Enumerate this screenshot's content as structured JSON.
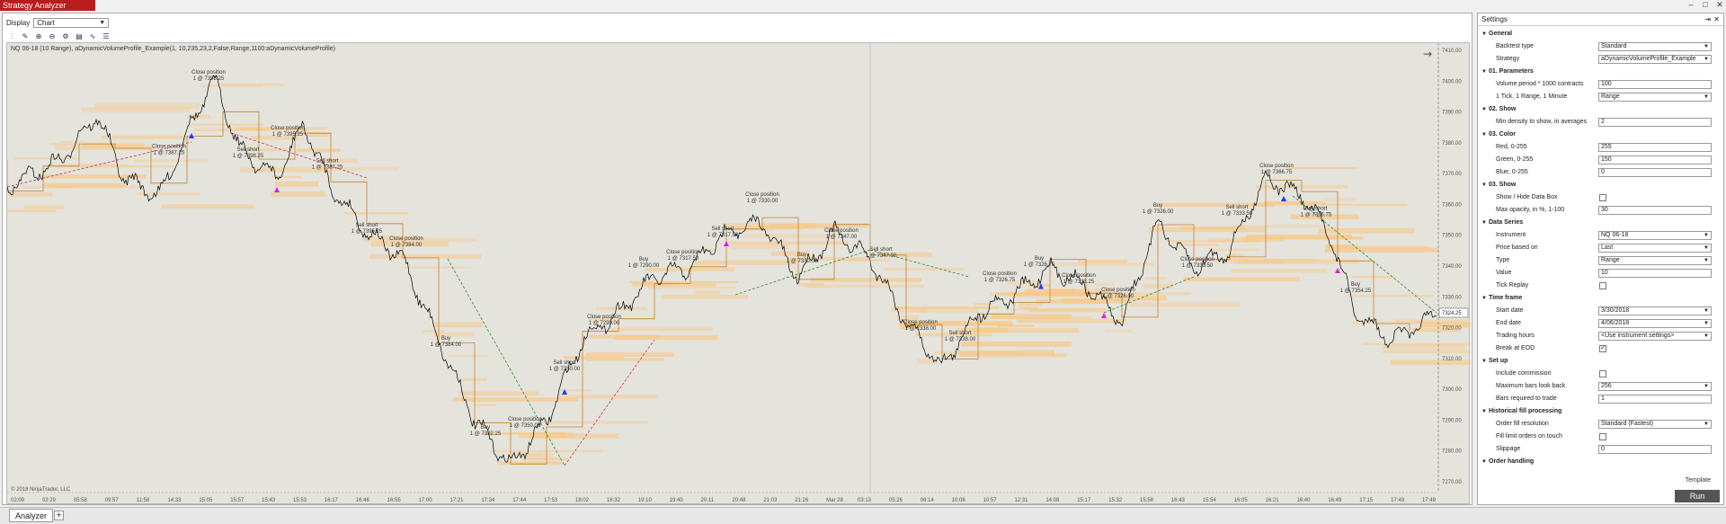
{
  "window": {
    "title": "Strategy Analyzer",
    "minimize": "–",
    "maximize": "□",
    "close": "✕"
  },
  "display": {
    "label": "Display",
    "value": "Chart"
  },
  "toolbar": {
    "icons": [
      "bar-type-icon",
      "draw-icon",
      "zoom-in-icon",
      "zoom-out-icon",
      "properties-icon",
      "indicators-icon",
      "strategies-icon",
      "data-box-icon"
    ]
  },
  "chart": {
    "header": "NQ 06-18 (10 Range), aDynamicVolumeProfile_Example(1, 10,235,23,2,False,Range,1100:aDynamicVolumeProfile)",
    "copyright": "© 2018 NinjaTrader, LLC",
    "last_price_tag": "7324.25",
    "colors": {
      "background": "#e4e3dc",
      "price": "#000000",
      "profile": "#f7c98a",
      "poc": "#c8822c",
      "win": "#2e8b2e",
      "loss": "#d0304a",
      "buy": "#1e3cff",
      "sell": "#e020e0"
    }
  },
  "chart_data": {
    "type": "line",
    "y_ticks": [
      "7410.00",
      "7400.00",
      "7390.00",
      "7380.00",
      "7370.00",
      "7360.00",
      "7350.00",
      "7340.00",
      "7330.00",
      "7320.00",
      "7310.00",
      "7300.00",
      "7290.00",
      "7280.00",
      "7270.00"
    ],
    "x_ticks": [
      "02:09",
      "03:29",
      "05:58",
      "09:57",
      "11:58",
      "14:33",
      "15:05",
      "15:57",
      "15:43",
      "15:53",
      "16:17",
      "16:46",
      "16:55",
      "17:00",
      "17:21",
      "17:34",
      "17:44",
      "17:53",
      "18:02",
      "18:32",
      "19:10",
      "19:40",
      "20:11",
      "20:48",
      "21:03",
      "21:26",
      "Mar 28",
      "03:13",
      "05:26",
      "06:14",
      "10:08",
      "10:57",
      "12:31",
      "14:08",
      "15:17",
      "15:32",
      "15:58",
      "16:43",
      "15:54",
      "16:05",
      "16:21",
      "16:40",
      "16:49",
      "17:15",
      "17:49",
      "17:49"
    ],
    "annotations": [
      {
        "label": "Close position",
        "price": "1 @ 7387.25"
      },
      {
        "label": "Close position",
        "price": "1 @ 7398.25"
      },
      {
        "label": "Sell short",
        "price": "1 @ 7398.25"
      },
      {
        "label": "Close position",
        "price": "1 @ 7395.25"
      },
      {
        "label": "Sell short",
        "price": "1 @ 7387.25"
      },
      {
        "label": "Sell short",
        "price": "1 @ 7395.25"
      },
      {
        "label": "Close position",
        "price": "1 @ 7384.00"
      },
      {
        "label": "Buy",
        "price": "1 @ 7384.00"
      },
      {
        "label": "Buy",
        "price": "1 @ 7382.25"
      },
      {
        "label": "Close position",
        "price": "1 @ 7350.00"
      },
      {
        "label": "Sell short",
        "price": "1 @ 7350.00"
      },
      {
        "label": "Close position",
        "price": "1 @ 7290.00"
      },
      {
        "label": "Buy",
        "price": "1 @ 7290.00"
      },
      {
        "label": "Close position",
        "price": "1 @ 7317.50"
      },
      {
        "label": "Sell short",
        "price": "1 @ 7317.50"
      },
      {
        "label": "Close position",
        "price": "1 @ 7330.00"
      },
      {
        "label": "Buy",
        "price": "1 @ 7330.00"
      },
      {
        "label": "Close position",
        "price": "1 @ 7347.00"
      },
      {
        "label": "Sell short",
        "price": "1 @ 7347.00"
      },
      {
        "label": "Close position",
        "price": "1 @ 7338.00"
      },
      {
        "label": "Sell short",
        "price": "1 @ 7338.00"
      },
      {
        "label": "Close position",
        "price": "1 @ 7326.75"
      },
      {
        "label": "Buy",
        "price": "1 @ 7326.75"
      },
      {
        "label": "Close position",
        "price": "1 @ 7333.25"
      },
      {
        "label": "Close position",
        "price": "1 @ 7326.00"
      },
      {
        "label": "Buy",
        "price": "1 @ 7326.00"
      },
      {
        "label": "Close position",
        "price": "1 @ 7333.50"
      },
      {
        "label": "Sell short",
        "price": "1 @ 7333.50"
      },
      {
        "label": "Close position",
        "price": "1 @ 7366.75"
      },
      {
        "label": "Sell short",
        "price": "1 @ 7366.75"
      },
      {
        "label": "Buy",
        "price": "1 @ 7354.25"
      }
    ]
  },
  "bottom": {
    "tab_label": "Analyzer",
    "add_label": "+"
  },
  "settings": {
    "title": "Settings",
    "pin": "⇥",
    "close": "✕",
    "template_label": "Template",
    "run_label": "Run",
    "rows": [
      {
        "kind": "section",
        "label": "General"
      },
      {
        "kind": "select",
        "label": "Backtest type",
        "value": "Standard"
      },
      {
        "kind": "select",
        "label": "Strategy",
        "value": "aDynamicVolumeProfile_Example"
      },
      {
        "kind": "section",
        "label": "01. Parameters"
      },
      {
        "kind": "text",
        "label": "Volume period * 1000 contracts",
        "value": "100"
      },
      {
        "kind": "select",
        "label": "1 Tick, 1 Range, 1 Minute",
        "value": "Range"
      },
      {
        "kind": "section",
        "label": "02. Show"
      },
      {
        "kind": "text",
        "label": "Min density to show, in averages",
        "value": "2"
      },
      {
        "kind": "section",
        "label": "03. Color"
      },
      {
        "kind": "text",
        "label": "Red, 0-255",
        "value": "255"
      },
      {
        "kind": "text",
        "label": "Green, 0-255",
        "value": "150"
      },
      {
        "kind": "text",
        "label": "Blue, 0-255",
        "value": "0"
      },
      {
        "kind": "section",
        "label": "03. Show"
      },
      {
        "kind": "check",
        "label": "Show / Hide Data Box",
        "checked": false
      },
      {
        "kind": "text",
        "label": "Max opacity, in %, 1-100",
        "value": "30"
      },
      {
        "kind": "section",
        "label": "Data Series"
      },
      {
        "kind": "select",
        "label": "Instrument",
        "value": "NQ 06-18"
      },
      {
        "kind": "select",
        "label": "Price based on",
        "value": "Last"
      },
      {
        "kind": "select",
        "label": "Type",
        "value": "Range"
      },
      {
        "kind": "text",
        "label": "Value",
        "value": "10"
      },
      {
        "kind": "check",
        "label": "Tick Replay",
        "checked": false
      },
      {
        "kind": "section",
        "label": "Time frame"
      },
      {
        "kind": "select",
        "label": "Start date",
        "value": "3/30/2018"
      },
      {
        "kind": "select",
        "label": "End date",
        "value": "4/06/2018"
      },
      {
        "kind": "select",
        "label": "Trading hours",
        "value": "<Use instrument settings>"
      },
      {
        "kind": "check",
        "label": "Break at EOD",
        "checked": true
      },
      {
        "kind": "section",
        "label": "Set up"
      },
      {
        "kind": "check",
        "label": "Include commission",
        "checked": false
      },
      {
        "kind": "select",
        "label": "Maximum bars look back",
        "value": "256"
      },
      {
        "kind": "text",
        "label": "Bars required to trade",
        "value": "1"
      },
      {
        "kind": "section",
        "label": "Historical fill processing"
      },
      {
        "kind": "select",
        "label": "Order fill resolution",
        "value": "Standard (Fastest)"
      },
      {
        "kind": "check",
        "label": "Fill limit orders on touch",
        "checked": false
      },
      {
        "kind": "text",
        "label": "Slippage",
        "value": "0"
      },
      {
        "kind": "section",
        "label": "Order handling"
      }
    ]
  }
}
